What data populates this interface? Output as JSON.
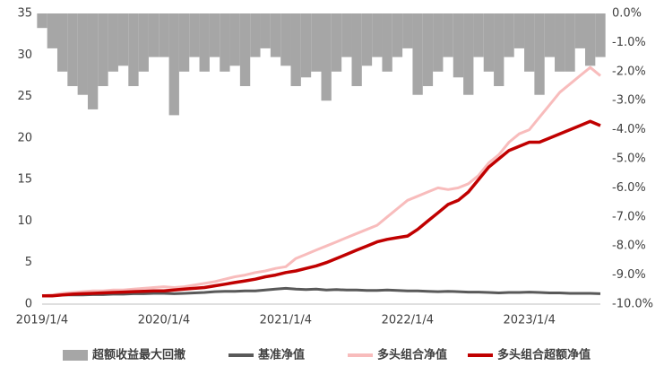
{
  "chart_data": {
    "type": "line",
    "categories": [
      "2019/1/4",
      null,
      null,
      null,
      null,
      null,
      null,
      null,
      null,
      null,
      null,
      null,
      "2020/1/4",
      null,
      null,
      null,
      null,
      null,
      null,
      null,
      null,
      null,
      null,
      null,
      "2021/1/4",
      null,
      null,
      null,
      null,
      null,
      null,
      null,
      null,
      null,
      null,
      null,
      "2022/1/4",
      null,
      null,
      null,
      null,
      null,
      null,
      null,
      null,
      null,
      null,
      null,
      "2023/1/4",
      null,
      null,
      null,
      null,
      null,
      null,
      null
    ],
    "ylim": [
      0,
      35
    ],
    "yticks": [
      0,
      5,
      10,
      15,
      20,
      25,
      30,
      35
    ],
    "y2lim": [
      -10,
      0
    ],
    "y2ticks": [
      {
        "value": -10,
        "label": "-10.0%"
      },
      {
        "value": -9,
        "label": "-9.0%"
      },
      {
        "value": -8,
        "label": "-8.0%"
      },
      {
        "value": -7,
        "label": "-7.0%"
      },
      {
        "value": -6,
        "label": "-6.0%"
      },
      {
        "value": -5,
        "label": "-5.0%"
      },
      {
        "value": -4,
        "label": "-4.0%"
      },
      {
        "value": -3,
        "label": "-3.0%"
      },
      {
        "value": -2,
        "label": "-2.0%"
      },
      {
        "value": -1,
        "label": "-1.0%"
      },
      {
        "value": 0,
        "label": "0.0%"
      }
    ],
    "series": [
      {
        "name": "超额收益最大回撤",
        "color": "#a6a6a6",
        "type": "bar",
        "axis": "y2",
        "values": [
          -0.5,
          -1.2,
          -2.0,
          -2.5,
          -2.8,
          -3.3,
          -2.5,
          -2.0,
          -1.8,
          -2.5,
          -2.0,
          -1.5,
          -1.5,
          -3.5,
          -2.0,
          -1.5,
          -2.0,
          -1.5,
          -2.0,
          -1.8,
          -2.5,
          -1.5,
          -1.2,
          -1.5,
          -1.8,
          -2.5,
          -2.2,
          -2.0,
          -3.0,
          -2.0,
          -1.5,
          -2.5,
          -1.8,
          -1.5,
          -2.0,
          -1.5,
          -1.2,
          -2.8,
          -2.5,
          -2.0,
          -1.5,
          -2.2,
          -2.8,
          -1.5,
          -2.0,
          -2.5,
          -1.5,
          -1.2,
          -2.0,
          -2.8,
          -1.5,
          -2.0,
          -2.0,
          -1.2,
          -1.8,
          -1.5
        ]
      },
      {
        "name": "基准净值",
        "color": "#595959",
        "values": [
          1.0,
          1.05,
          1.1,
          1.1,
          1.1,
          1.15,
          1.15,
          1.2,
          1.2,
          1.25,
          1.25,
          1.3,
          1.3,
          1.25,
          1.3,
          1.35,
          1.4,
          1.5,
          1.55,
          1.55,
          1.6,
          1.6,
          1.7,
          1.8,
          1.9,
          1.8,
          1.75,
          1.8,
          1.7,
          1.75,
          1.7,
          1.7,
          1.65,
          1.65,
          1.7,
          1.65,
          1.6,
          1.6,
          1.55,
          1.5,
          1.55,
          1.5,
          1.45,
          1.45,
          1.4,
          1.35,
          1.4,
          1.4,
          1.45,
          1.4,
          1.35,
          1.35,
          1.3,
          1.3,
          1.3,
          1.25
        ]
      },
      {
        "name": "多头组合净值",
        "color": "#f8bcbc",
        "values": [
          1.0,
          1.1,
          1.3,
          1.4,
          1.5,
          1.6,
          1.6,
          1.7,
          1.7,
          1.8,
          1.9,
          2.0,
          2.1,
          2.0,
          2.1,
          2.3,
          2.5,
          2.7,
          3.0,
          3.3,
          3.5,
          3.8,
          4.0,
          4.3,
          4.5,
          5.5,
          6.0,
          6.5,
          7.0,
          7.5,
          8.0,
          8.5,
          9.0,
          9.5,
          10.5,
          11.5,
          12.5,
          13.0,
          13.5,
          14.0,
          13.8,
          14.0,
          14.5,
          15.5,
          17.0,
          18.0,
          19.5,
          20.5,
          21.0,
          22.5,
          24.0,
          25.5,
          26.5,
          27.5,
          28.5,
          27.5
        ]
      },
      {
        "name": "多头组合超额净值",
        "color": "#c00000",
        "values": [
          1.0,
          1.0,
          1.1,
          1.2,
          1.25,
          1.3,
          1.35,
          1.4,
          1.45,
          1.5,
          1.55,
          1.6,
          1.6,
          1.7,
          1.8,
          1.9,
          2.0,
          2.2,
          2.4,
          2.6,
          2.8,
          3.0,
          3.3,
          3.5,
          3.8,
          4.0,
          4.3,
          4.6,
          5.0,
          5.5,
          6.0,
          6.5,
          7.0,
          7.5,
          7.8,
          8.0,
          8.2,
          9.0,
          10.0,
          11.0,
          12.0,
          12.5,
          13.5,
          15.0,
          16.5,
          17.5,
          18.5,
          19.0,
          19.5,
          19.5,
          20.0,
          20.5,
          21.0,
          21.5,
          22.0,
          21.5
        ]
      }
    ]
  }
}
